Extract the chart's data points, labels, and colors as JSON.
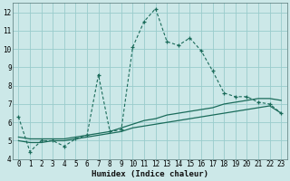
{
  "xlabel": "Humidex (Indice chaleur)",
  "bg_color": "#cce8e8",
  "grid_color": "#99cccc",
  "line_color": "#1a6b5a",
  "xlim": [
    -0.5,
    23.5
  ],
  "ylim": [
    4,
    12.5
  ],
  "xticks": [
    0,
    1,
    2,
    3,
    4,
    5,
    6,
    7,
    8,
    9,
    10,
    11,
    12,
    13,
    14,
    15,
    16,
    17,
    18,
    19,
    20,
    21,
    22,
    23
  ],
  "yticks": [
    4,
    5,
    6,
    7,
    8,
    9,
    10,
    11,
    12
  ],
  "line1_x": [
    0,
    1,
    2,
    3,
    4,
    5,
    6,
    7,
    8,
    9,
    10,
    11,
    12,
    13,
    14,
    15,
    16,
    17,
    18,
    19,
    20,
    21,
    22,
    23
  ],
  "line1_y": [
    6.3,
    4.4,
    5.0,
    5.0,
    4.7,
    5.1,
    5.3,
    8.6,
    5.5,
    5.6,
    10.1,
    11.5,
    12.2,
    10.4,
    10.2,
    10.6,
    9.9,
    8.8,
    7.6,
    7.4,
    7.4,
    7.1,
    7.0,
    6.5
  ],
  "line2_x": [
    0,
    1,
    2,
    3,
    4,
    5,
    6,
    7,
    8,
    9,
    10,
    11,
    12,
    13,
    14,
    15,
    16,
    17,
    18,
    19,
    20,
    21,
    22,
    23
  ],
  "line2_y": [
    5.0,
    4.9,
    4.9,
    5.0,
    5.0,
    5.1,
    5.2,
    5.3,
    5.4,
    5.5,
    5.7,
    5.8,
    5.9,
    6.0,
    6.1,
    6.2,
    6.3,
    6.4,
    6.5,
    6.6,
    6.7,
    6.8,
    6.9,
    6.5
  ],
  "line3_x": [
    0,
    1,
    2,
    3,
    4,
    5,
    6,
    7,
    8,
    9,
    10,
    11,
    12,
    13,
    14,
    15,
    16,
    17,
    18,
    19,
    20,
    21,
    22,
    23
  ],
  "line3_y": [
    5.2,
    5.1,
    5.1,
    5.1,
    5.1,
    5.2,
    5.3,
    5.4,
    5.5,
    5.7,
    5.9,
    6.1,
    6.2,
    6.4,
    6.5,
    6.6,
    6.7,
    6.8,
    7.0,
    7.1,
    7.2,
    7.3,
    7.3,
    7.2
  ]
}
